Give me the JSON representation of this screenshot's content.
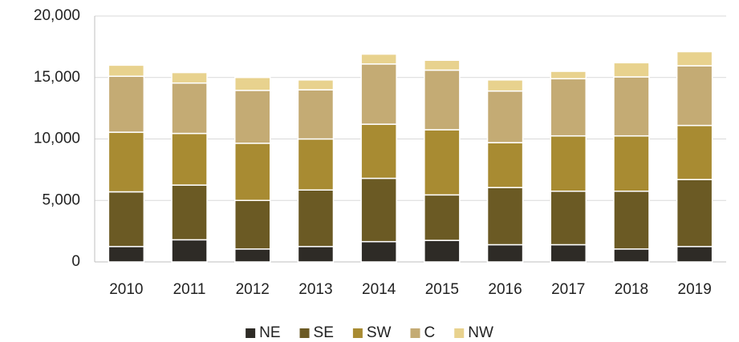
{
  "chart_data": {
    "type": "stacked_bar",
    "categories": [
      "2010",
      "2011",
      "2012",
      "2013",
      "2014",
      "2015",
      "2016",
      "2017",
      "2018",
      "2019"
    ],
    "series": [
      {
        "name": "NE",
        "color": "#2e2b26",
        "values": [
          1250,
          1800,
          1050,
          1250,
          1650,
          1750,
          1400,
          1400,
          1050,
          1250
        ]
      },
      {
        "name": "SE",
        "color": "#6b5a24",
        "values": [
          4450,
          4450,
          3950,
          4600,
          5150,
          3700,
          4650,
          4350,
          4700,
          5450
        ]
      },
      {
        "name": "SW",
        "color": "#a88b32",
        "values": [
          4850,
          4200,
          4650,
          4150,
          4400,
          5300,
          3650,
          4500,
          4500,
          4400
        ]
      },
      {
        "name": "C",
        "color": "#c4ab74",
        "values": [
          4550,
          4100,
          4300,
          4000,
          4900,
          4850,
          4200,
          4650,
          4800,
          4850
        ]
      },
      {
        "name": "NW",
        "color": "#e8d28e",
        "values": [
          900,
          850,
          1050,
          800,
          800,
          800,
          900,
          600,
          1150,
          1150
        ]
      }
    ],
    "ylim": [
      0,
      20000
    ],
    "yticks": [
      0,
      {
        "value": 5000,
        "label": "5,000"
      },
      {
        "value": 10000,
        "label": "10,000"
      },
      {
        "value": 15000,
        "label": "15,000"
      },
      {
        "value": 20000,
        "label": "20,000"
      }
    ],
    "grid": true,
    "legend": "bottom"
  }
}
